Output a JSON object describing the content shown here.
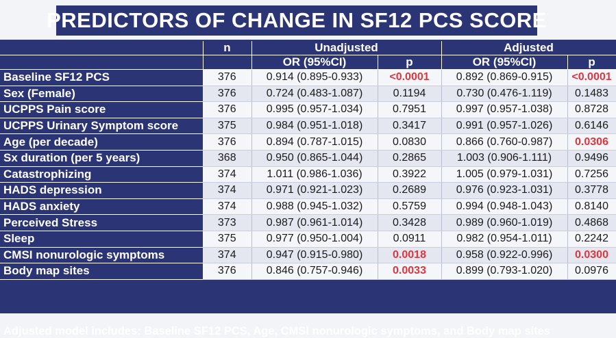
{
  "title": "PREDICTORS OF CHANGE IN SF12 PCS SCORE",
  "headers": {
    "n": "n",
    "unadjusted": "Unadjusted",
    "adjusted": "Adjusted",
    "or_ci": "OR (95%CI)",
    "p": "p"
  },
  "rows": [
    {
      "label": "Baseline SF12 PCS",
      "n": "376",
      "u_or": "0.914 (0.895-0.933)",
      "u_p": "<0.0001",
      "u_sig": true,
      "a_or": "0.892 (0.869-0.915)",
      "a_p": "<0.0001",
      "a_sig": true
    },
    {
      "label": "Sex (Female)",
      "n": "376",
      "u_or": "0.724 (0.483-1.087)",
      "u_p": "0.1194",
      "u_sig": false,
      "a_or": "0.730 (0.476-1.119)",
      "a_p": "0.1483",
      "a_sig": false
    },
    {
      "label": "UCPPS Pain score",
      "n": "376",
      "u_or": "0.995 (0.957-1.034)",
      "u_p": "0.7951",
      "u_sig": false,
      "a_or": "0.997 (0.957-1.038)",
      "a_p": "0.8728",
      "a_sig": false
    },
    {
      "label": "UCPPS Urinary Symptom score",
      "n": "375",
      "u_or": "0.984 (0.951-1.018)",
      "u_p": "0.3417",
      "u_sig": false,
      "a_or": "0.991 (0.957-1.026)",
      "a_p": "0.6146",
      "a_sig": false
    },
    {
      "label": "Age (per decade)",
      "n": "376",
      "u_or": "0.894 (0.787-1.015)",
      "u_p": "0.0830",
      "u_sig": false,
      "a_or": "0.866 (0.760-0.987)",
      "a_p": "0.0306",
      "a_sig": true
    },
    {
      "label": "Sx duration (per 5 years)",
      "n": "368",
      "u_or": "0.950 (0.865-1.044)",
      "u_p": "0.2865",
      "u_sig": false,
      "a_or": "1.003 (0.906-1.111)",
      "a_p": "0.9496",
      "a_sig": false
    },
    {
      "label": "Catastrophizing",
      "n": "374",
      "u_or": "1.011 (0.986-1.036)",
      "u_p": "0.3922",
      "u_sig": false,
      "a_or": "1.005 (0.979-1.031)",
      "a_p": "0.7256",
      "a_sig": false
    },
    {
      "label": "HADS depression",
      "n": "374",
      "u_or": "0.971 (0.921-1.023)",
      "u_p": "0.2689",
      "u_sig": false,
      "a_or": "0.976 (0.923-1.031)",
      "a_p": "0.3778",
      "a_sig": false
    },
    {
      "label": "HADS anxiety",
      "n": "374",
      "u_or": "0.988 (0.945-1.032)",
      "u_p": "0.5759",
      "u_sig": false,
      "a_or": "0.994 (0.948-1.043)",
      "a_p": "0.8140",
      "a_sig": false
    },
    {
      "label": "Perceived Stress",
      "n": "373",
      "u_or": "0.987 (0.961-1.014)",
      "u_p": "0.3428",
      "u_sig": false,
      "a_or": "0.989 (0.960-1.019)",
      "a_p": "0.4868",
      "a_sig": false
    },
    {
      "label": "Sleep",
      "n": "375",
      "u_or": "0.977 (0.950-1.004)",
      "u_p": "0.0911",
      "u_sig": false,
      "a_or": "0.982 (0.954-1.011)",
      "a_p": "0.2242",
      "a_sig": false
    },
    {
      "label": "CMSI nonurologic symptoms",
      "n": "374",
      "u_or": "0.947 (0.915-0.980)",
      "u_p": "0.0018",
      "u_sig": true,
      "a_or": "0.958 (0.922-0.996)",
      "a_p": "0.0300",
      "a_sig": true
    },
    {
      "label": "Body map sites",
      "n": "376",
      "u_or": "0.846 (0.757-0.946)",
      "u_p": "0.0033",
      "u_sig": true,
      "a_or": "0.899 (0.793-1.020)",
      "a_p": "0.0976",
      "a_sig": false
    }
  ],
  "footnote": "Adjusted model includes: Baseline SF12 PCS, Age, CMSI nonurologic symptoms, and Body map sites",
  "colors": {
    "header_bg": "#2b3575",
    "significant": "#e0353d"
  }
}
